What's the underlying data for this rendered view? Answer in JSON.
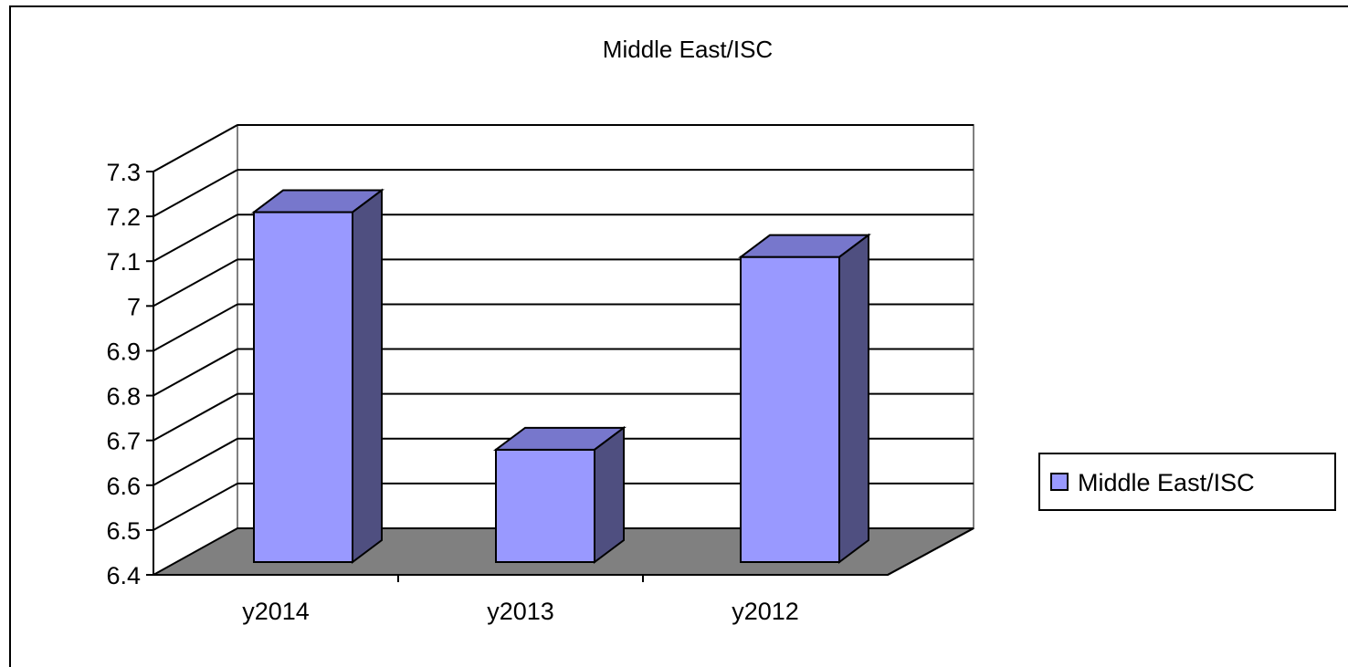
{
  "chart_data": {
    "type": "bar",
    "title": "Middle East/ISC",
    "categories": [
      "y2014",
      "y2013",
      "y2012"
    ],
    "series": [
      {
        "name": "Middle East/ISC",
        "values": [
          7.25,
          6.72,
          7.15
        ]
      }
    ],
    "ylim": [
      6.4,
      7.3
    ],
    "yticks": [
      "6.4",
      "6.5",
      "6.6",
      "6.7",
      "6.8",
      "6.9",
      "7",
      "7.1",
      "7.2",
      "7.3"
    ],
    "grid": true,
    "legend": "right",
    "colors": {
      "bar_front": "#9999ff",
      "bar_top": "#7777cc",
      "bar_side": "#4f4f80",
      "floor": "#808080"
    }
  }
}
